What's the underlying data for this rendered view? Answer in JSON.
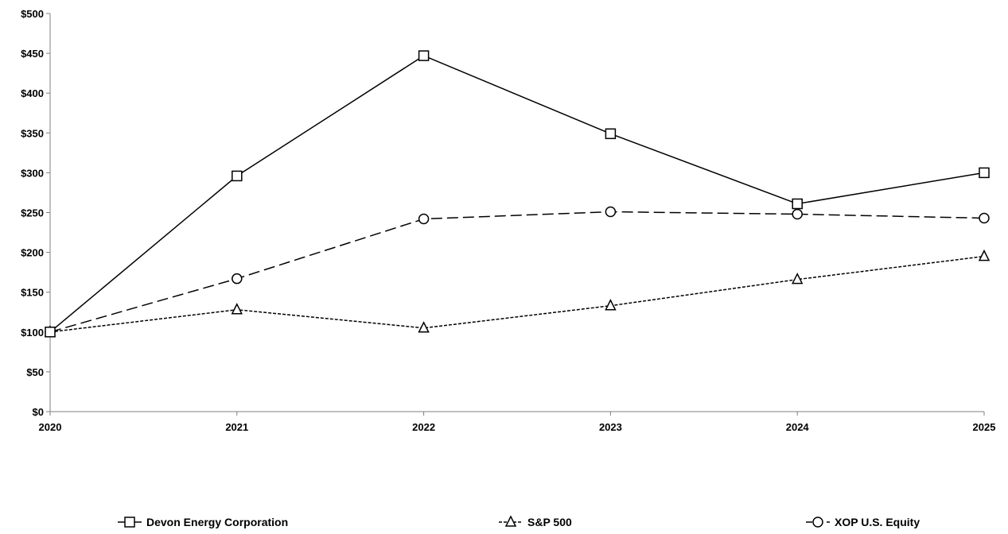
{
  "chart_data": {
    "type": "line",
    "categories": [
      "2020",
      "2021",
      "2022",
      "2023",
      "2024",
      "2025"
    ],
    "ylim": [
      0,
      500
    ],
    "yticks": [
      0,
      50,
      100,
      150,
      200,
      250,
      300,
      350,
      400,
      450,
      500
    ],
    "ytick_labels": [
      "$0",
      "$50",
      "$100",
      "$150",
      "$200",
      "$250",
      "$300",
      "$350",
      "$400",
      "$450",
      "$500"
    ],
    "grid": false,
    "legend_position": "bottom",
    "series": [
      {
        "name": "Devon Energy Corporation",
        "values": [
          100,
          296,
          447,
          349,
          261,
          300
        ],
        "marker": "square",
        "dash": "solid",
        "color": "#000000"
      },
      {
        "name": "S&P 500",
        "values": [
          100,
          128,
          105,
          133,
          166,
          195
        ],
        "marker": "triangle",
        "dash": "short-dash",
        "color": "#000000"
      },
      {
        "name": "XOP U.S. Equity",
        "values": [
          100,
          167,
          242,
          251,
          248,
          243
        ],
        "marker": "circle",
        "dash": "long-dash",
        "color": "#000000"
      }
    ]
  }
}
